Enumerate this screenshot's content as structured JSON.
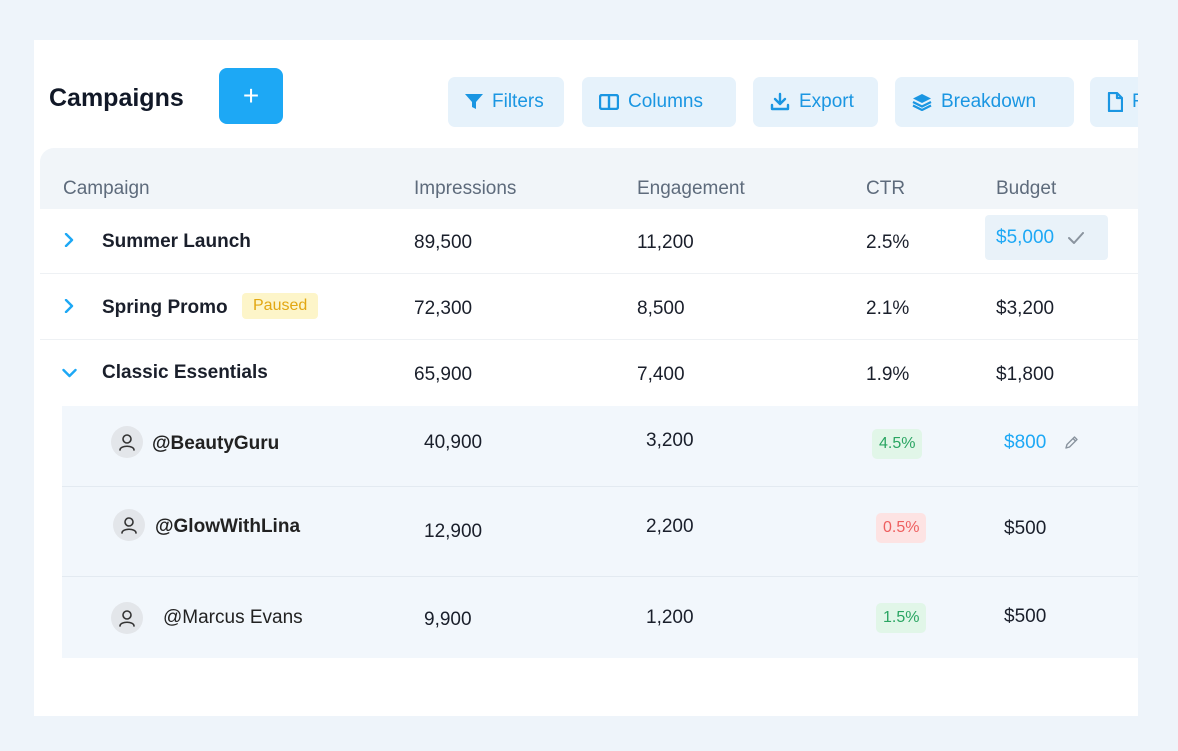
{
  "header": {
    "title": "Campaigns",
    "add_label": "+"
  },
  "toolbar": {
    "filters": "Filters",
    "columns": "Columns",
    "export": "Export",
    "breakdown": "Breakdown",
    "report": "R"
  },
  "table": {
    "columns": [
      "Campaign",
      "Impressions",
      "Engagement",
      "CTR",
      "Budget"
    ],
    "rows": [
      {
        "name": "Summer Launch",
        "impressions": "89,500",
        "engagement": "11,200",
        "ctr": "2.5%",
        "budget": "$5,000",
        "expanded": false,
        "editing_budget": true
      },
      {
        "name": "Spring Promo",
        "status": "Paused",
        "impressions": "72,300",
        "engagement": "8,500",
        "ctr": "2.1%",
        "budget": "$3,200",
        "expanded": false
      },
      {
        "name": "Classic Essentials",
        "impressions": "65,900",
        "engagement": "7,400",
        "ctr": "1.9%",
        "budget": "$1,800",
        "expanded": true
      }
    ],
    "sub_rows": [
      {
        "handle": "@BeautyGuru",
        "impressions": "40,900",
        "engagement": "3,200",
        "ctr": "4.5%",
        "ctr_trend": "up",
        "budget": "$800",
        "budget_editable": true
      },
      {
        "handle": "@GlowWithLina",
        "impressions": "12,900",
        "engagement": "2,200",
        "ctr": "0.5%",
        "ctr_trend": "down",
        "budget": "$500"
      },
      {
        "handle": "@Marcus Evans",
        "impressions": "9,900",
        "engagement": "1,200",
        "ctr": "1.5%",
        "ctr_trend": "up",
        "budget": "$500"
      }
    ]
  },
  "colors": {
    "accent": "#1da8f5",
    "toolbar_bg": "#e6f2fb",
    "paused_bg": "#fdf5c9",
    "paused_text": "#e2a712",
    "good_bg": "#e1f6e8",
    "good_text": "#2aa562",
    "bad_bg": "#fde3e3",
    "bad_text": "#ee5f5f"
  },
  "icons": {
    "filters": "funnel-icon",
    "columns": "columns-icon",
    "export": "download-icon",
    "breakdown": "layers-icon",
    "report": "document-icon",
    "row_collapsed": "chevron-right-icon",
    "row_expanded": "chevron-down-icon",
    "confirm": "check-icon",
    "edit": "pencil-icon",
    "avatar": "user-icon"
  }
}
